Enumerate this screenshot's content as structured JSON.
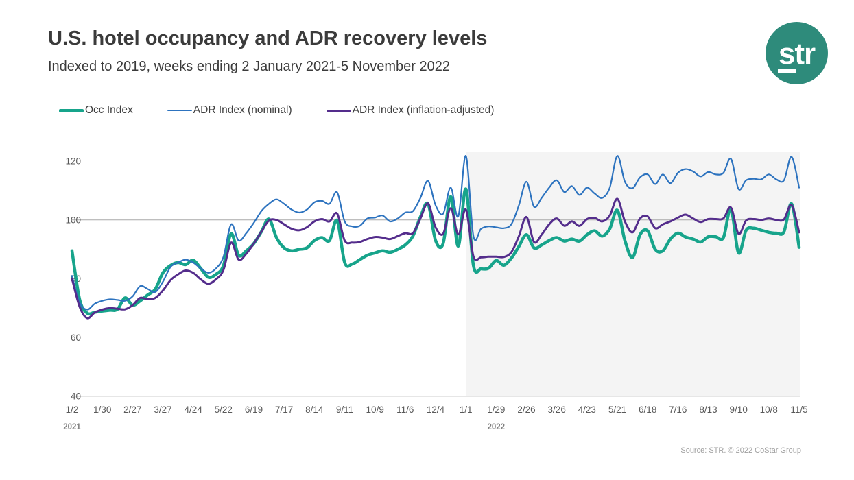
{
  "header": {
    "title": "U.S. hotel occupancy and ADR recovery levels",
    "subtitle": "Indexed to 2019, weeks ending 2 January 2021-5 November 2022",
    "logo_text": "str",
    "logo_color": "#2e8b7b"
  },
  "legend": [
    {
      "label": "Occ Index",
      "color": "#17a48b",
      "thickness": 5
    },
    {
      "label": "ADR Index (nominal)",
      "color": "#2d73bf",
      "thickness": 2
    },
    {
      "label": "ADR Index (inflation-adjusted)",
      "color": "#542d8c",
      "thickness": 3
    }
  ],
  "footer": {
    "source": "Source: STR. © 2022 CoStar Group"
  },
  "chart_data": {
    "type": "line",
    "title": "U.S. hotel occupancy and ADR recovery levels",
    "subtitle": "Indexed to 2019, weeks ending 2 January 2021-5 November 2022",
    "ylim": [
      40,
      120
    ],
    "y_ticks": [
      40,
      60,
      80,
      100,
      120
    ],
    "reference_line_value": 100,
    "grid": "reference-line-only",
    "legend_position": "top-left",
    "x_unit": "week-ending date, every 4th week labeled",
    "x_tick_labels": [
      "1/2",
      "1/30",
      "2/27",
      "3/27",
      "4/24",
      "5/22",
      "6/19",
      "7/17",
      "8/14",
      "9/11",
      "10/9",
      "11/6",
      "12/4",
      "1/1",
      "1/29",
      "2/26",
      "3/26",
      "4/23",
      "5/21",
      "6/18",
      "7/16",
      "8/13",
      "9/10",
      "10/8",
      "11/5"
    ],
    "x_tick_every_n_weeks": 4,
    "weeks_total": 97,
    "year_labels": [
      {
        "text": "2021",
        "under_tick": "1/2"
      },
      {
        "text": "2022",
        "under_tick": "1/29"
      }
    ],
    "shaded_region": {
      "from_tick_label": "1/1",
      "to": "end",
      "color": "#f4f4f4"
    },
    "colors": {
      "reference_line": "#a8a8a8",
      "axis_baseline": "#d6d6d6",
      "tick_text": "#595959",
      "year_text": "#7f7f7f"
    },
    "series": [
      {
        "name": "Occ Index",
        "color": "#17a48b",
        "width": 4.5,
        "values": [
          89.5,
          73,
          68.3,
          68.6,
          69,
          69.3,
          69.6,
          73.5,
          71,
          72.5,
          74.5,
          76.5,
          82,
          84.5,
          85.5,
          84.8,
          86.3,
          83.5,
          80.5,
          81.5,
          84.5,
          95.3,
          88,
          89.5,
          92,
          96,
          100.3,
          94,
          90.5,
          89.5,
          90,
          90.5,
          93,
          94,
          93,
          99.8,
          85.5,
          85,
          86.5,
          88,
          88.8,
          89.5,
          89,
          90,
          91.5,
          94.5,
          101,
          105.5,
          93,
          92,
          107.9,
          91.1,
          110.5,
          84.5,
          83.4,
          83.6,
          86.2,
          84.6,
          87,
          91,
          95,
          90.5,
          91.5,
          93,
          94,
          92.8,
          93.5,
          92.8,
          95,
          96.3,
          94.5,
          97,
          103.3,
          93,
          87.2,
          95,
          96.3,
          90,
          89.5,
          93.5,
          95.5,
          94.2,
          93.5,
          92.5,
          94.3,
          94.3,
          94,
          103.8,
          88.8,
          96.5,
          97.2,
          96.5,
          95.8,
          95.5,
          96,
          105.5,
          90.7
        ]
      },
      {
        "name": "ADR Index (nominal)",
        "color": "#2d73bf",
        "width": 2.2,
        "values": [
          81,
          72,
          69.5,
          71.5,
          72.5,
          73,
          72.8,
          72.5,
          74,
          77.5,
          76.5,
          75.5,
          79,
          84,
          85.5,
          86.5,
          85.5,
          83.5,
          82,
          83.5,
          87.5,
          98.5,
          93,
          95.5,
          99,
          103,
          105.5,
          107,
          105.5,
          103.5,
          102.5,
          103.5,
          106,
          106.5,
          105.5,
          109.4,
          99.5,
          97.8,
          98,
          100.5,
          100.8,
          101.5,
          99.5,
          100.5,
          102.5,
          103,
          107.5,
          113.3,
          105,
          102.1,
          111,
          101.2,
          121.8,
          94.5,
          97,
          97.8,
          97.5,
          97.2,
          98.5,
          105,
          113,
          104.5,
          107.5,
          111,
          113.5,
          109.5,
          111.5,
          108.5,
          111,
          109,
          107.5,
          111,
          121.8,
          113,
          110.8,
          114.5,
          115.5,
          112.2,
          115.5,
          112.5,
          116,
          117.3,
          116.5,
          114.8,
          116.3,
          115.5,
          116,
          120.8,
          110.5,
          113.5,
          114,
          113.8,
          115.5,
          113.8,
          113.5,
          121.5,
          111
        ]
      },
      {
        "name": "ADR Index (inflation-adjusted)",
        "color": "#542d8c",
        "width": 3,
        "values": [
          80,
          70.5,
          66.6,
          68.5,
          69.5,
          70,
          69.8,
          69.6,
          71,
          73.5,
          73,
          73.5,
          76,
          79.5,
          81.5,
          82.8,
          82,
          79.8,
          78.3,
          79.8,
          83,
          92.3,
          86.5,
          88.5,
          92,
          96,
          99.8,
          100,
          98.5,
          97,
          96.5,
          97.5,
          99.5,
          100.3,
          99.5,
          102.2,
          93,
          92.3,
          92.5,
          93.5,
          94.2,
          94,
          93.5,
          94.5,
          95.5,
          95.5,
          100.5,
          105.6,
          97.5,
          95.3,
          104,
          95.1,
          103.5,
          87.6,
          87.3,
          87.5,
          87.5,
          87.4,
          89,
          94.5,
          101,
          92.5,
          95,
          98.5,
          100.5,
          98,
          99.5,
          98,
          100.3,
          100.7,
          99.5,
          101.5,
          107.2,
          99.5,
          95.8,
          100.5,
          101.2,
          97.2,
          98.5,
          99.5,
          100.8,
          101.8,
          100.5,
          99.3,
          100.3,
          100.3,
          100.5,
          104.2,
          95.3,
          99.8,
          100.3,
          100,
          100.5,
          100,
          100.2,
          105.1,
          95.8
        ]
      }
    ]
  }
}
